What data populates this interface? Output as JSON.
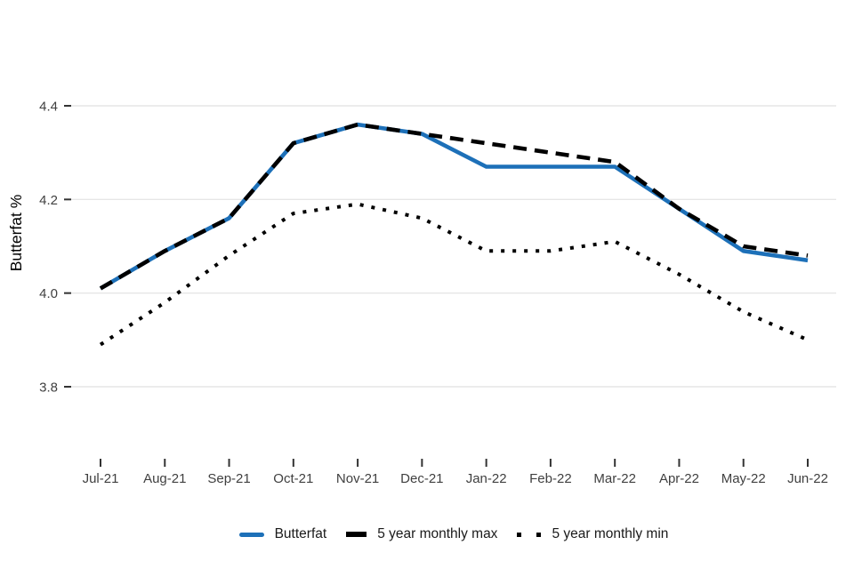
{
  "chart_data": {
    "type": "line",
    "title": "",
    "xlabel": "",
    "ylabel": "Butterfat %",
    "ylim": [
      3.8,
      4.4
    ],
    "yticks": [
      "3.8",
      "4.0",
      "4.2",
      "4.4"
    ],
    "grid": "horizontal",
    "legend_position": "bottom",
    "categories": [
      "Jul-21",
      "Aug-21",
      "Sep-21",
      "Oct-21",
      "Nov-21",
      "Dec-21",
      "Jan-22",
      "Feb-22",
      "Mar-22",
      "Apr-22",
      "May-22",
      "Jun-22"
    ],
    "series": [
      {
        "name": "Butterfat",
        "style": "solid",
        "color": "#1d70b8",
        "values": [
          4.01,
          4.09,
          4.16,
          4.32,
          4.36,
          4.34,
          4.27,
          4.27,
          4.27,
          4.18,
          4.09,
          4.07
        ]
      },
      {
        "name": "5 year monthly max",
        "style": "dashed",
        "color": "#000000",
        "values": [
          4.01,
          4.09,
          4.16,
          4.32,
          4.36,
          4.34,
          4.32,
          4.3,
          4.28,
          4.18,
          4.1,
          4.08
        ]
      },
      {
        "name": "5 year monthly min",
        "style": "dotted",
        "color": "#000000",
        "values": [
          3.89,
          3.98,
          4.08,
          4.17,
          4.19,
          4.16,
          4.09,
          4.09,
          4.11,
          4.04,
          3.96,
          3.9
        ]
      }
    ]
  },
  "colors": {
    "background": "#ffffff",
    "grid": "#e6e6e6",
    "tick_mark": "#333333",
    "tick_label": "#404040",
    "axis_title": "#000000"
  }
}
